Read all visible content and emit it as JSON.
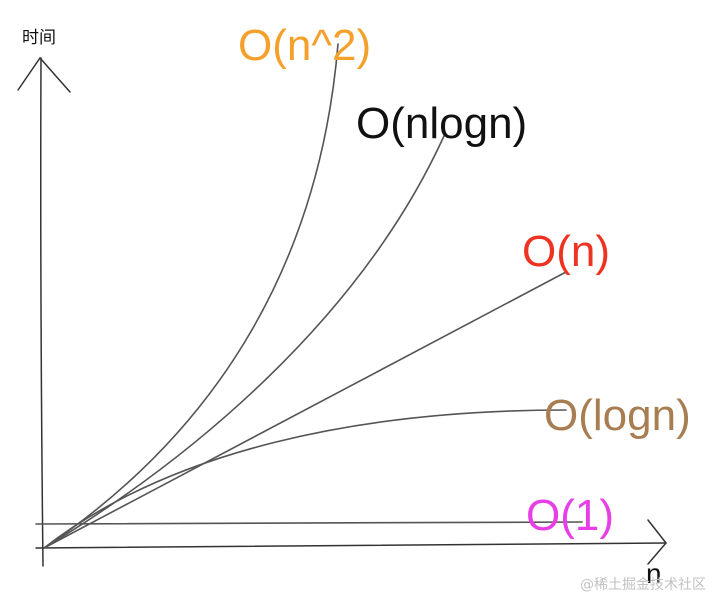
{
  "axes": {
    "y_label": "时间",
    "x_label": "n"
  },
  "curves": [
    {
      "key": "n2",
      "label": "O(n^2)",
      "color": "#f4a02a"
    },
    {
      "key": "nlogn",
      "label": "O(nlogn)",
      "color": "#111111"
    },
    {
      "key": "n",
      "label": "O(n)",
      "color": "#ee3322"
    },
    {
      "key": "logn",
      "label": "O(logn)",
      "color": "#a87d52"
    },
    {
      "key": "one",
      "label": "O(1)",
      "color": "#e83ee6"
    }
  ],
  "watermark": "@稀土掘金技术社区"
}
